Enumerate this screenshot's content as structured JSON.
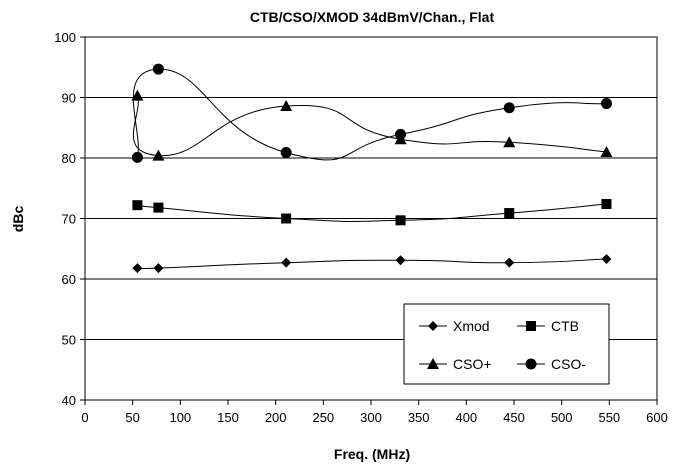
{
  "chart_data": {
    "type": "line",
    "title": "CTB/CSO/XMOD 34dBmV/Chan., Flat",
    "xlabel": "Freq. (MHz)",
    "ylabel": "dBc",
    "xlim": [
      0,
      600
    ],
    "ylim": [
      40,
      100
    ],
    "x_ticks": [
      0,
      50,
      100,
      150,
      200,
      250,
      300,
      350,
      400,
      450,
      500,
      550,
      600
    ],
    "y_ticks": [
      40,
      50,
      60,
      70,
      80,
      90,
      100
    ],
    "grid": "horizontal",
    "legend_position": "bottom-right",
    "series": [
      {
        "name": "Xmod",
        "marker": "diamond",
        "x": [
          55,
          77,
          211,
          331,
          445,
          547
        ],
        "y": [
          61.8,
          61.8,
          62.7,
          63.1,
          62.7,
          63.3
        ]
      },
      {
        "name": "CTB",
        "marker": "square",
        "x": [
          55,
          77,
          211,
          331,
          445,
          547
        ],
        "y": [
          72.2,
          71.8,
          70.0,
          69.7,
          70.9,
          72.4
        ]
      },
      {
        "name": "CSO+",
        "marker": "triangle",
        "x": [
          55,
          77,
          211,
          331,
          445,
          547
        ],
        "y": [
          90.3,
          80.4,
          88.6,
          83.1,
          82.6,
          81.0
        ]
      },
      {
        "name": "CSO-",
        "marker": "circle",
        "x": [
          55,
          77,
          211,
          331,
          445,
          547
        ],
        "y": [
          80.1,
          94.7,
          80.9,
          83.9,
          88.3,
          89.0
        ]
      }
    ],
    "colors": {
      "line": "#000000",
      "grid": "#000000",
      "background": "#ffffff"
    }
  }
}
